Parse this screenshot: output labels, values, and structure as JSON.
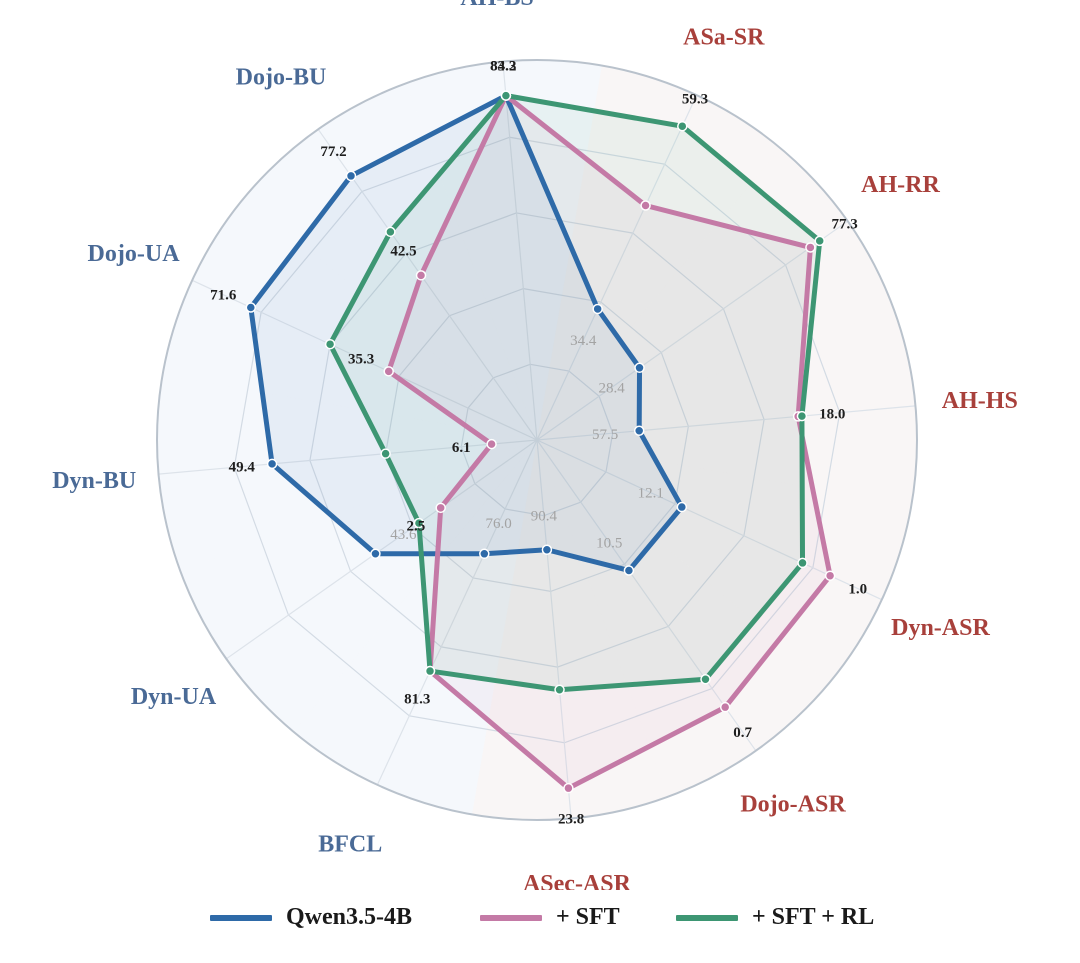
{
  "chart_data": {
    "type": "radar",
    "axes": [
      {
        "name": "AH-BS",
        "group": "utility"
      },
      {
        "name": "ASa-SR",
        "group": "security"
      },
      {
        "name": "AH-RR",
        "group": "security"
      },
      {
        "name": "AH-HS",
        "group": "security"
      },
      {
        "name": "Dyn-ASR",
        "group": "security"
      },
      {
        "name": "Dojo-ASR",
        "group": "security"
      },
      {
        "name": "ASec-ASR",
        "group": "security"
      },
      {
        "name": "BFCL",
        "group": "utility"
      },
      {
        "name": "Dyn-UA",
        "group": "utility"
      },
      {
        "name": "Dyn-BU",
        "group": "utility"
      },
      {
        "name": "Dojo-UA",
        "group": "utility"
      },
      {
        "name": "Dojo-BU",
        "group": "utility"
      }
    ],
    "series": [
      {
        "name": "Qwen3.5-4B",
        "color": "#2e6aa8",
        "radii": [
          0.91,
          0.38,
          0.33,
          0.27,
          0.42,
          0.42,
          0.29,
          0.33,
          0.52,
          0.7,
          0.83,
          0.85
        ],
        "labels": [
          "83.3",
          "34.4",
          "28.4",
          "57.5",
          "12.1",
          "10.5",
          "90.4",
          "76.0",
          "43.6",
          "49.4",
          "71.6",
          "77.2"
        ]
      },
      {
        "name": "+ SFT",
        "color": "#c47aa6",
        "radii": [
          0.91,
          0.68,
          0.88,
          0.69,
          0.85,
          0.86,
          0.92,
          0.67,
          0.31,
          0.12,
          0.43,
          0.53
        ],
        "labels": [
          "84.2",
          "",
          "",
          "",
          "1.0",
          "0.7",
          "23.8",
          "81.3",
          "2.5",
          "6.1",
          "35.3",
          "42.5"
        ]
      },
      {
        "name": "+ SFT + RL",
        "color": "#3d9673",
        "radii": [
          0.91,
          0.91,
          0.91,
          0.7,
          0.77,
          0.77,
          0.66,
          0.67,
          0.38,
          0.4,
          0.6,
          0.67
        ],
        "labels": [
          "",
          "59.3",
          "77.3",
          "18.0",
          "",
          "",
          "",
          "",
          "",
          "",
          "",
          ""
        ]
      }
    ],
    "grid_rings": [
      0.2,
      0.4,
      0.6,
      0.8
    ],
    "region_shading": {
      "utility": "#eaf1f8",
      "security": "#f7ece9"
    },
    "axis_label_colors": {
      "utility": "#4a6a96",
      "security": "#a8403b"
    }
  },
  "legend": [
    {
      "label": "Qwen3.5-4B",
      "color": "#2e6aa8"
    },
    {
      "label": "+ SFT",
      "color": "#c47aa6"
    },
    {
      "label": "+ SFT + RL",
      "color": "#3d9673"
    }
  ]
}
